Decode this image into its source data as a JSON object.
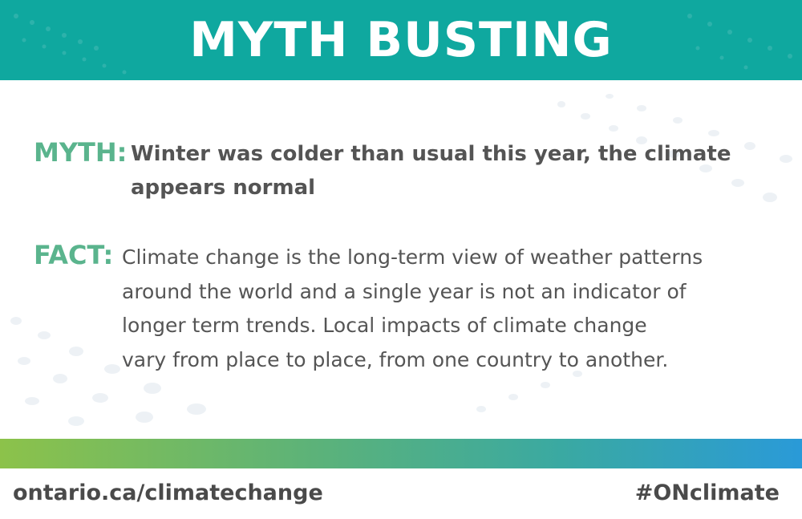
{
  "header": {
    "title": "MYTH BUSTING"
  },
  "myth": {
    "label": "MYTH:",
    "text": "Winter was colder than usual this year, the climate appears normal"
  },
  "fact": {
    "label": "FACT:",
    "lines": [
      "Climate change is the long-term view of weather patterns",
      "around the world and a single year is not an indicator of",
      "longer term trends. Local impacts of climate change",
      "vary from place to place, from one country to another."
    ]
  },
  "footer": {
    "url": "ontario.ca/climatechange",
    "hashtag": "#ONclimate"
  },
  "colors": {
    "header_bg": "#0fa89f",
    "label_green": "#5ab48d",
    "body_text": "#555555",
    "gradient_start": "#8cc24a",
    "gradient_end": "#2a9ad8"
  }
}
